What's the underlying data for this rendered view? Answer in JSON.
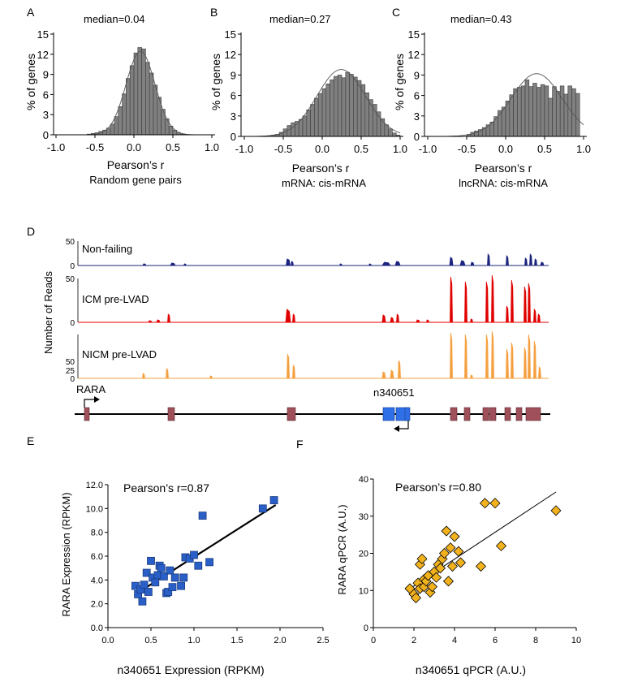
{
  "panels": {
    "A": {
      "label": "A",
      "median": "median=0.04",
      "ylabel": "% of genes",
      "xlabel": "Pearson’s r",
      "caption": "Random gene pairs"
    },
    "B": {
      "label": "B",
      "median": "median=0.27",
      "ylabel": "% of genes",
      "xlabel": "Pearson’s r",
      "caption": "mRNA: cis-mRNA"
    },
    "C": {
      "label": "C",
      "median": "median=0.43",
      "ylabel": "% of genes",
      "xlabel": "Pearson’s r",
      "caption": "lncRNA: cis-mRNA"
    },
    "D": {
      "label": "D",
      "ylabel": "Number of Reads",
      "tracks": [
        "Non-failing",
        "ICM pre-LVAD",
        "NICM pre-LVAD"
      ],
      "gene_rara": "RARA",
      "gene_lnc": "n340651"
    },
    "E": {
      "label": "E",
      "annotation": "Pearson’s r=0.87",
      "xlabel": "n340651 Expression (RPKM)",
      "ylabel": "RARA Expression (RPKM)"
    },
    "F": {
      "label": "F",
      "annotation": "Pearson’s r=0.80",
      "xlabel": "n340651 qPCR (A.U.)",
      "ylabel": "RARA qPCR (A.U.)"
    }
  },
  "colors": {
    "hist_bar": "#808080",
    "nonfailing": "#1a237e",
    "icm": "#e00000",
    "nicm": "#f5a040",
    "exon_rara": "#a0505a",
    "exon_lnc": "#2f6fe8",
    "scatter_e": "#2a5fc8",
    "scatter_f": "#f2b21e"
  },
  "chart_data": [
    {
      "type": "bar",
      "title": "median=0.04",
      "xlabel": "Pearson’s r",
      "ylabel": "% of genes",
      "xlim": [
        -1.0,
        1.0
      ],
      "ylim": [
        0,
        15
      ],
      "xticks": [
        "-1.0",
        "-0.5",
        "0.0",
        "0.5",
        "1.0"
      ],
      "yticks": [
        "0",
        "3",
        "6",
        "9",
        "12",
        "15"
      ],
      "x": [
        -0.575,
        -0.525,
        -0.475,
        -0.425,
        -0.375,
        -0.325,
        -0.275,
        -0.225,
        -0.175,
        -0.125,
        -0.075,
        -0.025,
        0.025,
        0.075,
        0.125,
        0.175,
        0.225,
        0.275,
        0.325,
        0.375,
        0.425,
        0.475,
        0.525,
        0.575,
        0.625
      ],
      "values": [
        0.1,
        0.2,
        0.3,
        0.5,
        0.7,
        1.0,
        1.6,
        2.7,
        4.2,
        6.1,
        8.4,
        10.3,
        12.2,
        13.0,
        12.8,
        10.8,
        9.2,
        7.4,
        5.6,
        3.8,
        2.4,
        1.3,
        0.7,
        0.3,
        0.1
      ]
    },
    {
      "type": "bar",
      "title": "median=0.27",
      "xlabel": "Pearson’s r",
      "ylabel": "% of genes",
      "xlim": [
        -1.0,
        1.0
      ],
      "ylim": [
        0,
        15
      ],
      "xticks": [
        "-1.0",
        "-0.5",
        "0.0",
        "0.5",
        "1.0"
      ],
      "yticks": [
        "0",
        "3",
        "6",
        "9",
        "12",
        "15"
      ],
      "x": [
        -0.625,
        -0.575,
        -0.525,
        -0.475,
        -0.425,
        -0.375,
        -0.325,
        -0.275,
        -0.225,
        -0.175,
        -0.125,
        -0.075,
        -0.025,
        0.025,
        0.075,
        0.125,
        0.175,
        0.225,
        0.275,
        0.325,
        0.375,
        0.425,
        0.475,
        0.525,
        0.575,
        0.625,
        0.675,
        0.725,
        0.775,
        0.825,
        0.875,
        0.925,
        0.975
      ],
      "values": [
        0.2,
        0.3,
        0.6,
        1.1,
        1.6,
        2.0,
        2.2,
        2.5,
        3.0,
        3.9,
        4.7,
        5.6,
        6.3,
        7.0,
        7.7,
        8.3,
        8.8,
        9.0,
        8.6,
        9.4,
        9.1,
        8.7,
        8.2,
        7.6,
        6.4,
        5.4,
        4.7,
        3.6,
        2.6,
        1.7,
        1.1,
        0.5,
        0.2
      ]
    },
    {
      "type": "bar",
      "title": "median=0.43",
      "xlabel": "Pearson’s r",
      "ylabel": "% of genes",
      "xlim": [
        -1.0,
        1.0
      ],
      "ylim": [
        0,
        15
      ],
      "xticks": [
        "-1.0",
        "-0.5",
        "0.0",
        "0.5",
        "1.0"
      ],
      "yticks": [
        "0",
        "3",
        "6",
        "9",
        "12",
        "15"
      ],
      "x": [
        -0.475,
        -0.425,
        -0.375,
        -0.325,
        -0.275,
        -0.225,
        -0.175,
        -0.125,
        -0.075,
        -0.025,
        0.025,
        0.075,
        0.125,
        0.175,
        0.225,
        0.275,
        0.325,
        0.375,
        0.425,
        0.475,
        0.525,
        0.575,
        0.625,
        0.675,
        0.725,
        0.775,
        0.825,
        0.875,
        0.925
      ],
      "values": [
        0.3,
        0.6,
        0.8,
        1.0,
        1.3,
        1.7,
        2.1,
        2.9,
        3.8,
        4.3,
        5.2,
        6.1,
        7.0,
        7.2,
        7.4,
        8.3,
        7.3,
        7.8,
        7.2,
        7.6,
        7.4,
        5.6,
        7.3,
        6.6,
        7.4,
        6.2,
        7.4,
        7.0,
        6.3
      ]
    },
    {
      "type": "line",
      "title": "",
      "ylabel": "Number of Reads",
      "series_labels": [
        "Non-failing",
        "ICM pre-LVAD",
        "NICM pre-LVAD"
      ],
      "yticks": [
        "50",
        "25",
        "0"
      ],
      "ylim": [
        0,
        50
      ]
    },
    {
      "type": "scatter",
      "title": "Pearson’s r=0.87",
      "xlabel": "n340651 Expression (RPKM)",
      "ylabel": "RARA Expression (RPKM)",
      "xlim": [
        0.0,
        2.5
      ],
      "ylim": [
        0.0,
        12.0
      ],
      "xticks": [
        "0.0",
        "0.5",
        "1.0",
        "1.5",
        "2.0",
        "2.5"
      ],
      "yticks": [
        "0.0",
        "2.0",
        "4.0",
        "6.0",
        "8.0",
        "10.0",
        "12.0"
      ],
      "x": [
        0.32,
        0.35,
        0.38,
        0.4,
        0.42,
        0.45,
        0.47,
        0.5,
        0.52,
        0.55,
        0.58,
        0.6,
        0.62,
        0.65,
        0.68,
        0.7,
        0.72,
        0.75,
        0.78,
        0.85,
        0.88,
        0.9,
        0.95,
        1.0,
        1.05,
        1.1,
        1.18,
        1.8,
        1.93
      ],
      "y": [
        3.5,
        2.8,
        3.2,
        2.2,
        3.6,
        4.6,
        3.0,
        5.6,
        4.2,
        3.8,
        4.4,
        5.2,
        5.0,
        4.3,
        2.9,
        3.0,
        4.8,
        3.4,
        4.2,
        3.5,
        4.2,
        5.9,
        5.8,
        6.1,
        5.2,
        9.4,
        5.5,
        10.0,
        10.7
      ],
      "trend_line": {
        "x": [
          0.32,
          1.95
        ],
        "y": [
          2.8,
          10.3
        ]
      }
    },
    {
      "type": "scatter",
      "title": "Pearson’s r=0.80",
      "xlabel": "n340651 qPCR (A.U.)",
      "ylabel": "RARA qPCR (A.U.)",
      "xlim": [
        0,
        10
      ],
      "ylim": [
        0,
        40
      ],
      "xticks": [
        "0",
        "2",
        "4",
        "6",
        "8",
        "10"
      ],
      "yticks": [
        "0",
        "10",
        "20",
        "30",
        "40"
      ],
      "x": [
        1.8,
        2.0,
        2.1,
        2.2,
        2.3,
        2.3,
        2.4,
        2.5,
        2.5,
        2.6,
        2.7,
        2.8,
        2.9,
        3.0,
        3.1,
        3.2,
        3.3,
        3.4,
        3.5,
        3.6,
        3.7,
        3.8,
        3.9,
        4.0,
        4.2,
        4.3,
        5.3,
        5.5,
        6.0,
        6.3,
        9.0
      ],
      "y": [
        10.5,
        9.0,
        8.0,
        12.0,
        17.0,
        10.5,
        18.5,
        13.0,
        11.0,
        12.5,
        14.0,
        9.5,
        11.0,
        15.0,
        13.5,
        17.0,
        16.0,
        18.5,
        20.0,
        26.0,
        12.5,
        21.5,
        16.5,
        24.5,
        20.5,
        17.5,
        16.5,
        33.5,
        33.5,
        22.0,
        31.5
      ],
      "trend_line": {
        "x": [
          1.8,
          9.0
        ],
        "y": [
          10.5,
          36.5
        ]
      }
    }
  ]
}
